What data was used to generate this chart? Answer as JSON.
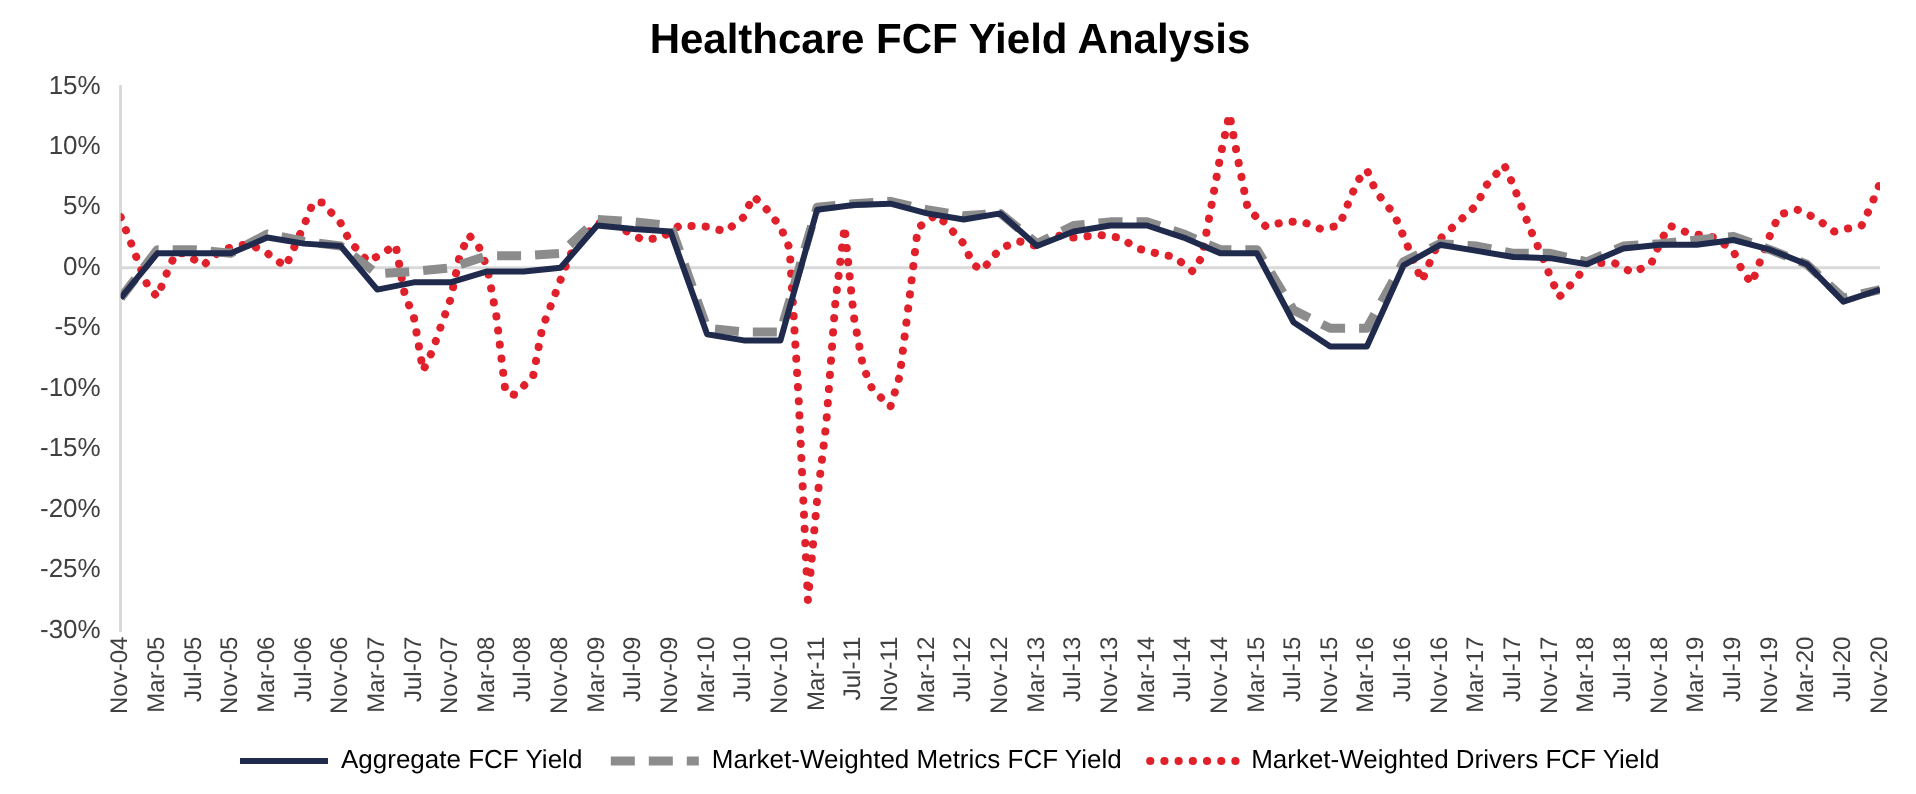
{
  "chart_data": {
    "type": "line",
    "title": "Healthcare FCF Yield Analysis",
    "x": [
      "2004-11",
      "2005-03",
      "2005-07",
      "2005-11",
      "2006-03",
      "2006-07",
      "2006-11",
      "2007-03",
      "2007-07",
      "2007-11",
      "2008-03",
      "2008-07",
      "2008-11",
      "2009-03",
      "2009-07",
      "2009-11",
      "2010-03",
      "2010-07",
      "2010-11",
      "2011-03",
      "2011-07",
      "2011-11",
      "2012-03",
      "2012-07",
      "2012-11",
      "2013-03",
      "2013-07",
      "2013-11",
      "2014-03",
      "2014-07",
      "2014-11",
      "2015-03",
      "2015-07",
      "2015-11",
      "2016-03",
      "2016-07",
      "2016-11",
      "2017-03",
      "2017-07",
      "2017-11",
      "2018-03",
      "2018-07",
      "2018-11",
      "2019-03",
      "2019-07",
      "2019-11",
      "2020-03",
      "2020-07",
      "2020-11"
    ],
    "series": [
      {
        "name": "Aggregate FCF Yield",
        "color": "#1f2a4d",
        "line_style": "solid",
        "values": [
          -2.5,
          1.2,
          1.2,
          1.2,
          2.5,
          2.0,
          1.8,
          -1.8,
          -1.2,
          -1.2,
          -0.3,
          -0.3,
          0.0,
          3.5,
          3.2,
          3.0,
          -5.5,
          -6.0,
          -6.0,
          4.8,
          5.2,
          5.3,
          4.5,
          4.0,
          4.5,
          1.8,
          3.0,
          3.5,
          3.5,
          2.5,
          1.2,
          1.2,
          -4.5,
          -6.5,
          -6.5,
          0.2,
          1.9,
          1.4,
          0.9,
          0.8,
          0.3,
          1.6,
          1.9,
          1.9,
          2.3,
          1.5,
          0.3,
          -2.8,
          -1.8
        ]
      },
      {
        "name": "Market-Weighted Metrics FCF Yield",
        "color": "#8c8c8c",
        "line_style": "dashed",
        "values": [
          -2.5,
          1.5,
          1.5,
          1.2,
          2.8,
          2.2,
          1.8,
          -0.5,
          -0.3,
          0.0,
          1.0,
          1.0,
          1.2,
          4.0,
          3.8,
          3.5,
          -5.0,
          -5.3,
          -5.3,
          5.0,
          5.3,
          5.5,
          4.8,
          4.3,
          4.5,
          2.0,
          3.5,
          3.8,
          3.8,
          2.8,
          1.5,
          1.5,
          -3.5,
          -5.0,
          -5.0,
          0.5,
          2.0,
          1.8,
          1.2,
          1.2,
          0.5,
          1.8,
          2.0,
          2.3,
          2.6,
          1.5,
          0.3,
          -2.5,
          -1.8
        ]
      },
      {
        "name": "Market-Weighted Drivers FCF Yield",
        "color": "#e0202a",
        "line_style": "dotted",
        "x": [
          "2004-11",
          "2004-12",
          "2005-01",
          "2005-02",
          "2005-03",
          "2005-04",
          "2005-05",
          "2005-06",
          "2005-08",
          "2005-10",
          "2006-01",
          "2006-03",
          "2006-05",
          "2006-06",
          "2006-07",
          "2006-08",
          "2006-09",
          "2006-11",
          "2006-12",
          "2007-02",
          "2007-04",
          "2007-05",
          "2007-06",
          "2007-07",
          "2007-08",
          "2007-09",
          "2007-10",
          "2007-11",
          "2007-12",
          "2008-01",
          "2008-02",
          "2008-03",
          "2008-04",
          "2008-05",
          "2008-06",
          "2008-08",
          "2008-09",
          "2008-10",
          "2008-11",
          "2008-12",
          "2009-01",
          "2009-03",
          "2009-05",
          "2009-08",
          "2009-10",
          "2009-12",
          "2010-03",
          "2010-05",
          "2010-07",
          "2010-08",
          "2010-09",
          "2010-11",
          "2010-12",
          "2011-01",
          "2011-02",
          "2011-03",
          "2011-04",
          "2011-05",
          "2011-06",
          "2011-07",
          "2011-08",
          "2011-09",
          "2011-11",
          "2011-12",
          "2012-01",
          "2012-02",
          "2012-04",
          "2012-05",
          "2012-07",
          "2012-08",
          "2012-09",
          "2012-11",
          "2013-01",
          "2013-03",
          "2013-05",
          "2013-07",
          "2013-10",
          "2013-12",
          "2014-02",
          "2014-04",
          "2014-06",
          "2014-08",
          "2014-09",
          "2014-10",
          "2014-11",
          "2014-12",
          "2015-01",
          "2015-02",
          "2015-04",
          "2015-06",
          "2015-08",
          "2015-10",
          "2015-12",
          "2016-01",
          "2016-02",
          "2016-03",
          "2016-04",
          "2016-06",
          "2016-07",
          "2016-08",
          "2016-09",
          "2016-10",
          "2016-11",
          "2017-01",
          "2017-03",
          "2017-04",
          "2017-06",
          "2017-07",
          "2017-08",
          "2017-09",
          "2017-10",
          "2017-11",
          "2017-12",
          "2018-02",
          "2018-03",
          "2018-06",
          "2018-08",
          "2018-10",
          "2018-11",
          "2018-12",
          "2019-02",
          "2019-05",
          "2019-07",
          "2019-08",
          "2019-09",
          "2019-10",
          "2019-11",
          "2019-12",
          "2020-02",
          "2020-04",
          "2020-06",
          "2020-09",
          "2020-10",
          "2020-11"
        ],
        "values": [
          4.2,
          2.3,
          0.3,
          -1.6,
          -2.4,
          -0.5,
          1.2,
          1.2,
          0.2,
          1.5,
          2.0,
          1.2,
          0.1,
          1.8,
          3.5,
          5.4,
          5.4,
          3.7,
          2.2,
          0.5,
          1.4,
          1.9,
          -2.2,
          -4.1,
          -8.5,
          -6.9,
          -4.7,
          -2.6,
          1.0,
          2.7,
          1.9,
          0.0,
          -4.0,
          -10.3,
          -10.5,
          -9.0,
          -5.0,
          -3.0,
          -1.0,
          1.0,
          2.1,
          3.7,
          3.5,
          2.3,
          2.5,
          3.5,
          3.4,
          3.0,
          4.2,
          5.9,
          5.3,
          3.4,
          1.6,
          -11.0,
          -27.5,
          -19.2,
          -12.9,
          -2.8,
          3.4,
          -4.0,
          -8.1,
          -10.0,
          -11.5,
          -9.0,
          -3.0,
          3.3,
          4.4,
          3.7,
          2.0,
          0.3,
          -0.2,
          1.6,
          2.2,
          1.8,
          2.7,
          2.5,
          2.7,
          2.5,
          1.6,
          1.2,
          0.9,
          -0.3,
          0.9,
          5.0,
          9.2,
          12.7,
          8.7,
          4.9,
          3.4,
          3.8,
          3.8,
          3.2,
          3.5,
          5.4,
          7.2,
          8.1,
          6.3,
          4.4,
          2.6,
          0.8,
          -1.1,
          0.7,
          2.4,
          3.8,
          5.2,
          6.8,
          8.5,
          6.8,
          4.8,
          2.9,
          1.2,
          -0.7,
          -2.4,
          -0.8,
          0.4,
          0.4,
          -0.4,
          0.3,
          2.1,
          3.5,
          2.9,
          2.5,
          1.4,
          -0.3,
          -1.3,
          0.7,
          2.7,
          4.4,
          4.8,
          4.1,
          3.0,
          3.5,
          5.1,
          7.0
        ]
      }
    ],
    "xlim": [
      "2004-11",
      "2020-11"
    ],
    "xticks": [
      {
        "value": "2004-11",
        "label": "Nov-04"
      },
      {
        "value": "2005-03",
        "label": "Mar-05"
      },
      {
        "value": "2005-07",
        "label": "Jul-05"
      },
      {
        "value": "2005-11",
        "label": "Nov-05"
      },
      {
        "value": "2006-03",
        "label": "Mar-06"
      },
      {
        "value": "2006-07",
        "label": "Jul-06"
      },
      {
        "value": "2006-11",
        "label": "Nov-06"
      },
      {
        "value": "2007-03",
        "label": "Mar-07"
      },
      {
        "value": "2007-07",
        "label": "Jul-07"
      },
      {
        "value": "2007-11",
        "label": "Nov-07"
      },
      {
        "value": "2008-03",
        "label": "Mar-08"
      },
      {
        "value": "2008-07",
        "label": "Jul-08"
      },
      {
        "value": "2008-11",
        "label": "Nov-08"
      },
      {
        "value": "2009-03",
        "label": "Mar-09"
      },
      {
        "value": "2009-07",
        "label": "Jul-09"
      },
      {
        "value": "2009-11",
        "label": "Nov-09"
      },
      {
        "value": "2010-03",
        "label": "Mar-10"
      },
      {
        "value": "2010-07",
        "label": "Jul-10"
      },
      {
        "value": "2010-11",
        "label": "Nov-10"
      },
      {
        "value": "2011-03",
        "label": "Mar-11"
      },
      {
        "value": "2011-07",
        "label": "Jul-11"
      },
      {
        "value": "2011-11",
        "label": "Nov-11"
      },
      {
        "value": "2012-03",
        "label": "Mar-12"
      },
      {
        "value": "2012-07",
        "label": "Jul-12"
      },
      {
        "value": "2012-11",
        "label": "Nov-12"
      },
      {
        "value": "2013-03",
        "label": "Mar-13"
      },
      {
        "value": "2013-07",
        "label": "Jul-13"
      },
      {
        "value": "2013-11",
        "label": "Nov-13"
      },
      {
        "value": "2014-03",
        "label": "Mar-14"
      },
      {
        "value": "2014-07",
        "label": "Jul-14"
      },
      {
        "value": "2014-11",
        "label": "Nov-14"
      },
      {
        "value": "2015-03",
        "label": "Mar-15"
      },
      {
        "value": "2015-07",
        "label": "Jul-15"
      },
      {
        "value": "2015-11",
        "label": "Nov-15"
      },
      {
        "value": "2016-03",
        "label": "Mar-16"
      },
      {
        "value": "2016-07",
        "label": "Jul-16"
      },
      {
        "value": "2016-11",
        "label": "Nov-16"
      },
      {
        "value": "2017-03",
        "label": "Mar-17"
      },
      {
        "value": "2017-07",
        "label": "Jul-17"
      },
      {
        "value": "2017-11",
        "label": "Nov-17"
      },
      {
        "value": "2018-03",
        "label": "Mar-18"
      },
      {
        "value": "2018-07",
        "label": "Jul-18"
      },
      {
        "value": "2018-11",
        "label": "Nov-18"
      },
      {
        "value": "2019-03",
        "label": "Mar-19"
      },
      {
        "value": "2019-07",
        "label": "Jul-19"
      },
      {
        "value": "2019-11",
        "label": "Nov-19"
      },
      {
        "value": "2020-03",
        "label": "Mar-20"
      },
      {
        "value": "2020-07",
        "label": "Jul-20"
      },
      {
        "value": "2020-11",
        "label": "Nov-20"
      }
    ],
    "ylim": [
      -30,
      15
    ],
    "yticks": [
      {
        "value": -30,
        "label": "-30%"
      },
      {
        "value": -25,
        "label": "-25%"
      },
      {
        "value": -20,
        "label": "-20%"
      },
      {
        "value": -15,
        "label": "-15%"
      },
      {
        "value": -10,
        "label": "-10%"
      },
      {
        "value": -5,
        "label": "-5%"
      },
      {
        "value": 0,
        "label": "0%"
      },
      {
        "value": 5,
        "label": "5%"
      },
      {
        "value": 10,
        "label": "10%"
      },
      {
        "value": 15,
        "label": "15%"
      }
    ],
    "ref_lines": [
      {
        "axis": "y",
        "value": 0,
        "color": "#d9d9d9"
      }
    ],
    "legend": "bottom"
  }
}
